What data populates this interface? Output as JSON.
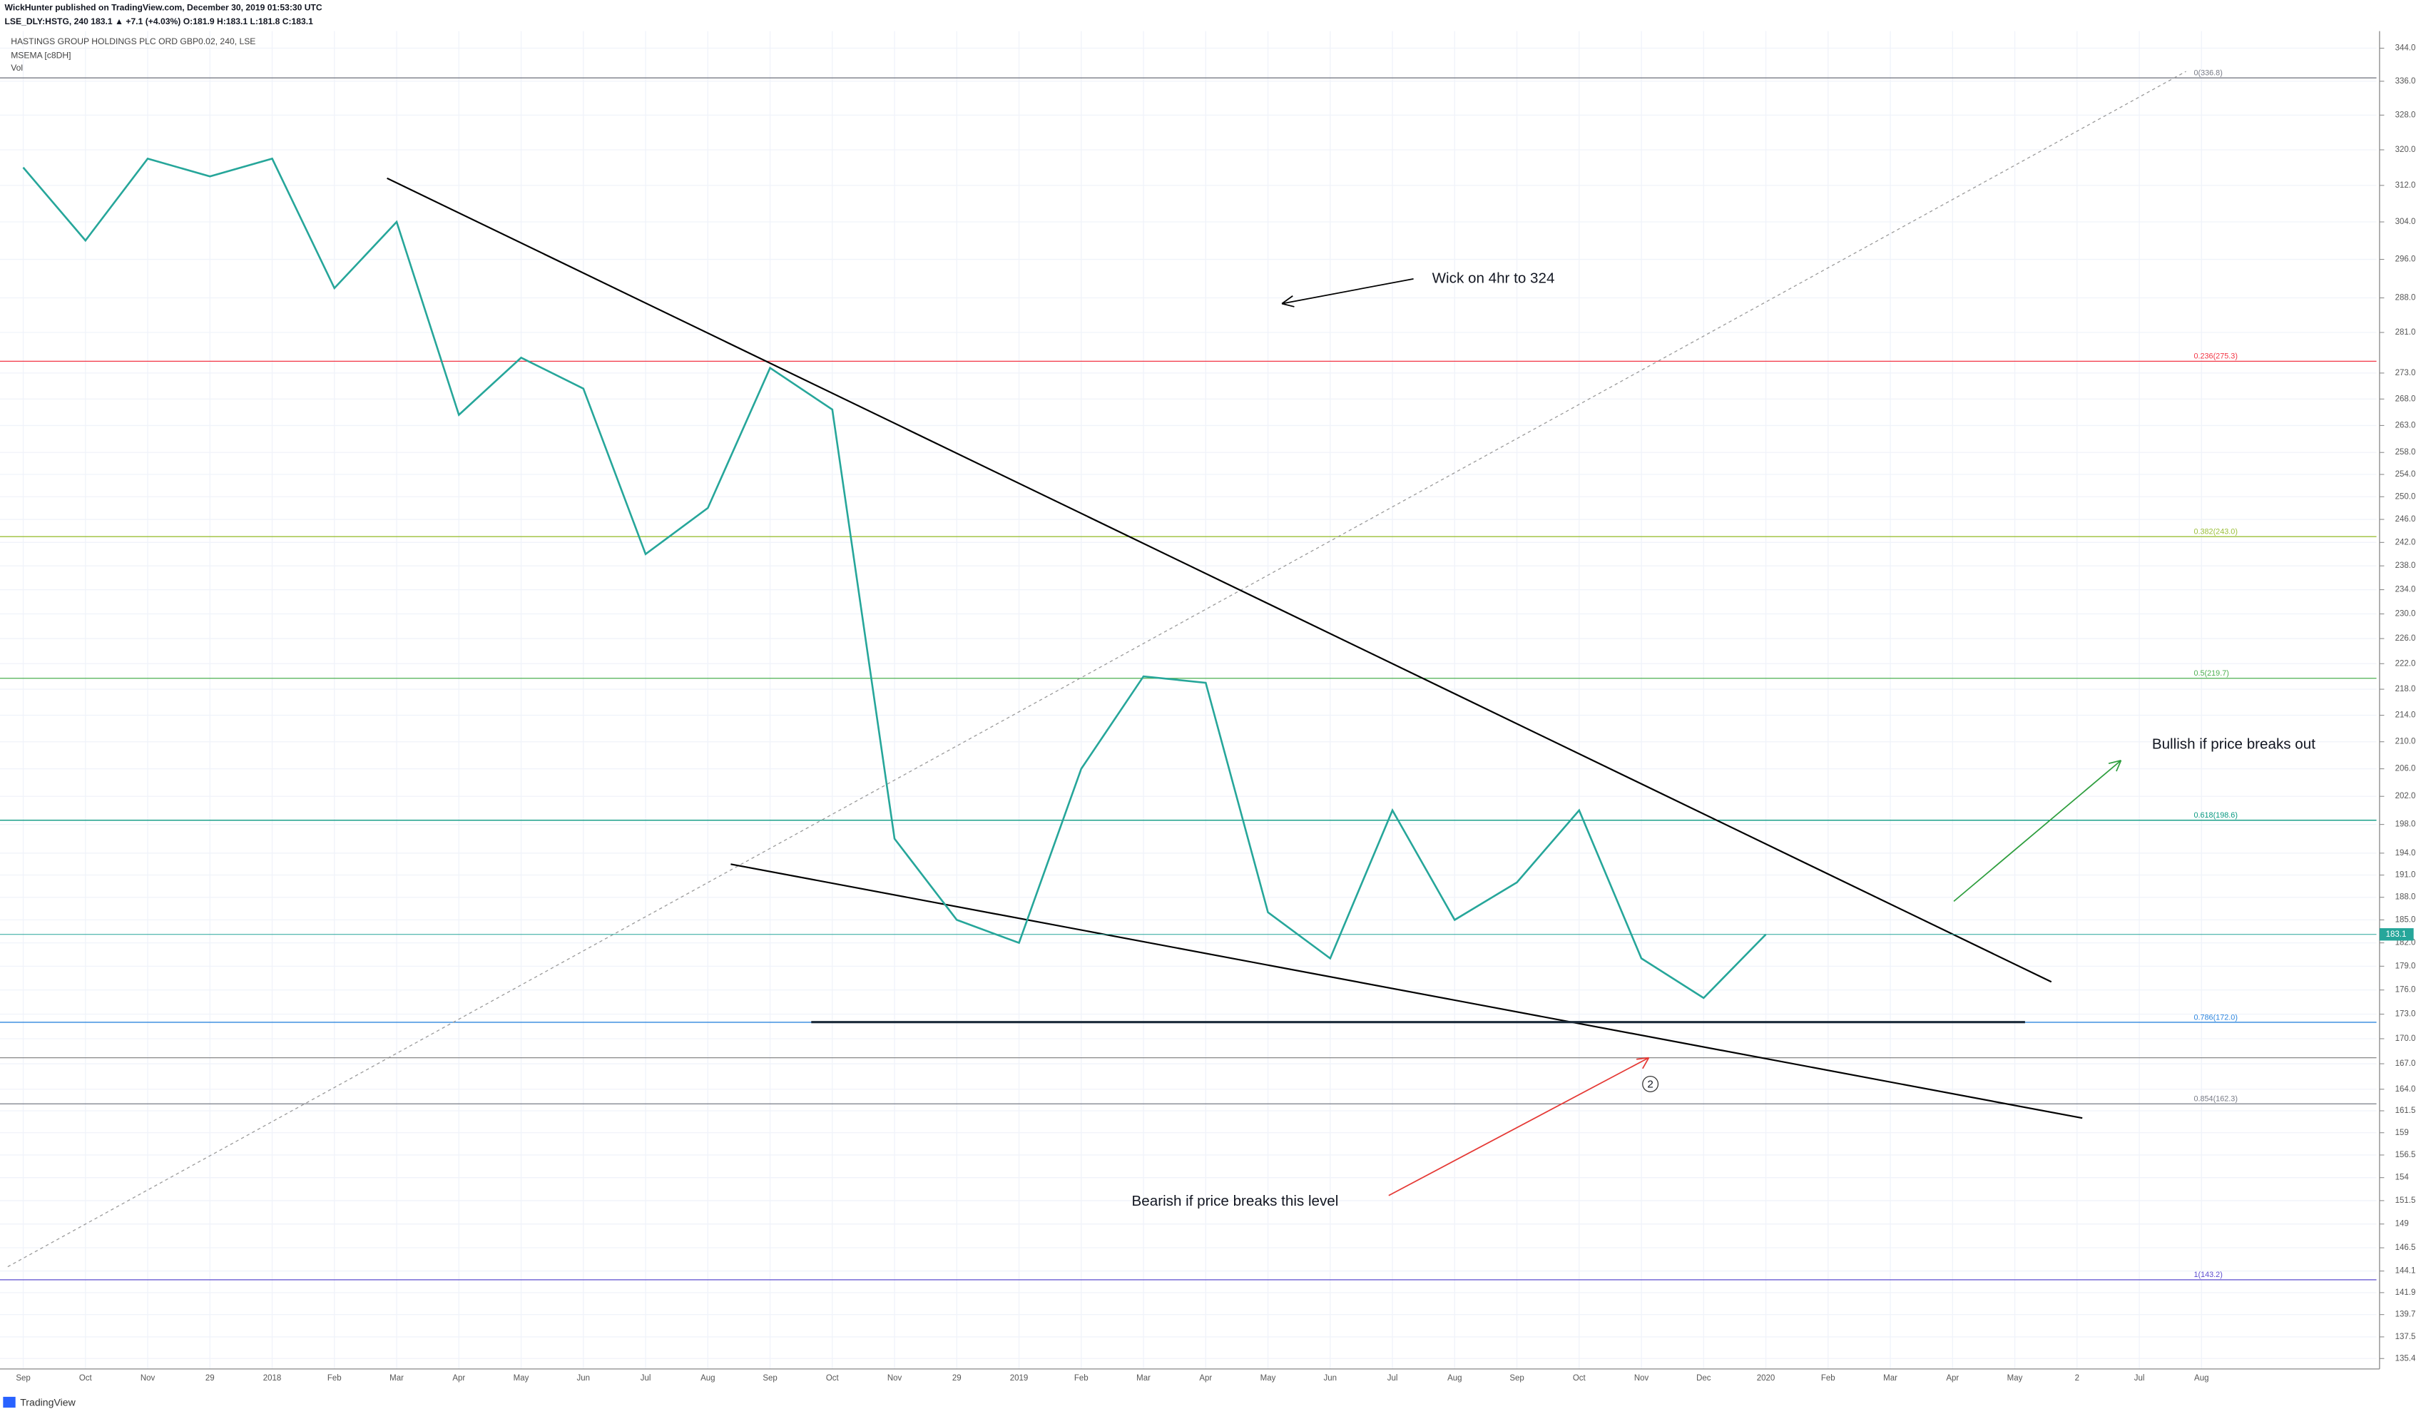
{
  "header": {
    "publisher": "WickHunter published on TradingView.com, December 30, 2019 01:53:30 UTC",
    "symbol_line": "LSE_DLY:HSTG, 240  183.1  ▲ +7.1 (+4.03%)  O:181.9  H:183.1  L:181.8  C:183.1",
    "instrument": "HASTINGS GROUP HOLDINGS PLC ORD GBP0.02, 240, LSE",
    "indicator": "MSEMA [c8DH]",
    "volume": "Vol",
    "brand": "TradingView"
  },
  "chart_data": {
    "type": "line",
    "log_scale": true,
    "grid": true,
    "color": "#26a69a",
    "categories": [
      "Sep",
      "Oct",
      "Nov",
      "29",
      "2018",
      "Feb",
      "Mar",
      "Apr",
      "May",
      "Jun",
      "Jul",
      "Aug",
      "Sep",
      "Oct",
      "Nov",
      "29",
      "2019",
      "Feb",
      "Mar",
      "Apr",
      "May",
      "Jun",
      "Jul",
      "Aug",
      "Sep",
      "Oct",
      "Nov",
      "Dec",
      "2020",
      "Feb",
      "Mar",
      "Apr",
      "May",
      "2",
      "Jul",
      "Aug"
    ],
    "values": [
      316,
      300,
      318,
      314,
      318,
      290,
      304,
      265,
      276,
      270,
      240,
      248,
      274,
      266,
      196,
      185,
      182,
      206,
      220,
      219,
      186,
      180,
      200,
      185,
      190,
      200,
      180,
      175,
      183.1,
      null,
      null,
      null,
      null,
      null,
      null,
      null
    ],
    "ylim": [
      134.4,
      348.2
    ],
    "yticks": [
      {
        "value": 344,
        "label": "344.0"
      },
      {
        "value": 336,
        "label": "336.0"
      },
      {
        "value": 328,
        "label": "328.0"
      },
      {
        "value": 320,
        "label": "320.0"
      },
      {
        "value": 312,
        "label": "312.0"
      },
      {
        "value": 304,
        "label": "304.0"
      },
      {
        "value": 296,
        "label": "296.0"
      },
      {
        "value": 288,
        "label": "288.0"
      },
      {
        "value": 281,
        "label": "281.0"
      },
      {
        "value": 273,
        "label": "273.0"
      },
      {
        "value": 268,
        "label": "268.0"
      },
      {
        "value": 263,
        "label": "263.0"
      },
      {
        "value": 258,
        "label": "258.0"
      },
      {
        "value": 254,
        "label": "254.0"
      },
      {
        "value": 250,
        "label": "250.0"
      },
      {
        "value": 246,
        "label": "246.0"
      },
      {
        "value": 242,
        "label": "242.0"
      },
      {
        "value": 238,
        "label": "238.0"
      },
      {
        "value": 234,
        "label": "234.0"
      },
      {
        "value": 230,
        "label": "230.0"
      },
      {
        "value": 226,
        "label": "226.0"
      },
      {
        "value": 222,
        "label": "222.0"
      },
      {
        "value": 218,
        "label": "218.0"
      },
      {
        "value": 214,
        "label": "214.0"
      },
      {
        "value": 210,
        "label": "210.0"
      },
      {
        "value": 206,
        "label": "206.0"
      },
      {
        "value": 202,
        "label": "202.0"
      },
      {
        "value": 198,
        "label": "198.0"
      },
      {
        "value": 194,
        "label": "194.0"
      },
      {
        "value": 191,
        "label": "191.0"
      },
      {
        "value": 188,
        "label": "188.0"
      },
      {
        "value": 185,
        "label": "185.0"
      },
      {
        "value": 182,
        "label": "182.0"
      },
      {
        "value": 179,
        "label": "179.0"
      },
      {
        "value": 176,
        "label": "176.0"
      },
      {
        "value": 173,
        "label": "173.0"
      },
      {
        "value": 170,
        "label": "170.0"
      },
      {
        "value": 167,
        "label": "167.0"
      },
      {
        "value": 164,
        "label": "164.0"
      },
      161.5,
      159,
      156.5,
      154,
      151.5,
      149,
      146.5,
      144.1,
      141.9,
      139.7,
      137.5,
      135.4
    ],
    "fib_levels": [
      {
        "value": 336.8,
        "label": "0(336.8)",
        "color": "#787b86"
      },
      {
        "value": 275.3,
        "label": "0.236(275.3)",
        "color": "#f23645"
      },
      {
        "value": 243.0,
        "label": "0.382(243.0)",
        "color": "#9bbf3a"
      },
      {
        "value": 219.7,
        "label": "0.5(219.7)",
        "color": "#4caf50"
      },
      {
        "value": 198.6,
        "label": "0.618(198.6)",
        "color": "#089981"
      },
      {
        "value": 172.0,
        "label": "0.786(172.0)",
        "color": "#2e86de"
      },
      {
        "value": 162.3,
        "label": "0.854(162.3)",
        "color": "#787b86"
      },
      {
        "value": 143.2,
        "label": "1(143.2)",
        "color": "#5c4ccf"
      }
    ],
    "annotations": [
      "Wick on 4hr to 324",
      "Bullish if price breaks out",
      "Bearish if price breaks this level",
      "2"
    ]
  }
}
